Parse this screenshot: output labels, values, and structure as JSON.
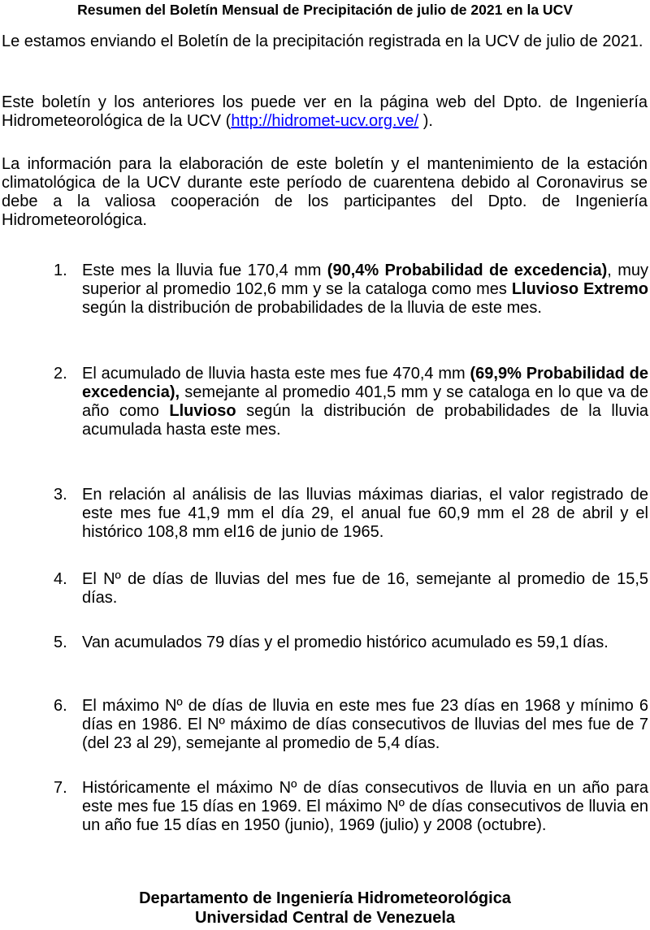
{
  "title": "Resumen del Boletín Mensual de Precipitación de julio de 2021 en la UCV",
  "paragraphs": {
    "p1": "Le estamos enviando el Boletín de la precipitación registrada en la UCV de julio de 2021.",
    "p2_before": "Este boletín y los anteriores los puede ver en la página web del Dpto. de Ingeniería Hidrometeorológica de la UCV (",
    "p2_link": "http://hidromet-ucv.org.ve/",
    "p2_after": " ).",
    "p3": "La información para la elaboración de este boletín y el mantenimiento de la estación climatológica de la UCV durante este período de cuarentena debido al Coronavirus se debe a la valiosa cooperación de los participantes del Dpto. de Ingeniería Hidrometeorológica."
  },
  "items": [
    {
      "num": "1.",
      "segments": [
        {
          "text": "Este mes la lluvia fue 170,4 mm ",
          "bold": false
        },
        {
          "text": "(90,4% Probabilidad de excedencia)",
          "bold": true
        },
        {
          "text": ", muy superior al promedio 102,6 mm y se la cataloga como mes ",
          "bold": false
        },
        {
          "text": "Lluvioso Extremo",
          "bold": true
        },
        {
          "text": " según la distribución de probabilidades de la lluvia de este mes.",
          "bold": false
        }
      ]
    },
    {
      "num": "2.",
      "segments": [
        {
          "text": "El acumulado de lluvia hasta este mes fue 470,4 mm ",
          "bold": false
        },
        {
          "text": "(69,9% Probabilidad de excedencia),",
          "bold": true
        },
        {
          "text": " semejante al promedio 401,5 mm y se cataloga en lo que va de año como ",
          "bold": false
        },
        {
          "text": "Lluvioso",
          "bold": true
        },
        {
          "text": " según la distribución de probabilidades de la lluvia acumulada hasta este mes.",
          "bold": false
        }
      ]
    },
    {
      "num": "3.",
      "segments": [
        {
          "text": "En relación al análisis de las lluvias máximas diarias, el valor registrado de este mes fue 41,9 mm el día 29, el anual fue 60,9 mm el 28 de abril y el histórico 108,8 mm el16 de junio de 1965.",
          "bold": false
        }
      ]
    },
    {
      "num": "4.",
      "segments": [
        {
          "text": "El Nº de días de lluvias del mes fue de 16, semejante al promedio de 15,5 días.",
          "bold": false
        }
      ]
    },
    {
      "num": "5.",
      "segments": [
        {
          "text": "Van acumulados 79 días y el promedio histórico acumulado es 59,1 días.",
          "bold": false
        }
      ]
    },
    {
      "num": "6.",
      "segments": [
        {
          "text": "El máximo Nº de días de lluvia en este mes fue 23 días en 1968 y mínimo 6 días en 1986. El Nº máximo de días consecutivos de lluvias del mes fue de 7 (del 23 al 29), semejante al promedio de 5,4 días.",
          "bold": false
        }
      ]
    },
    {
      "num": "7.",
      "segments": [
        {
          "text": "Históricamente el máximo Nº de días consecutivos de lluvia en un año para este mes fue 15 días en 1969. El máximo Nº de días consecutivos de lluvia en un año fue 15 días en 1950 (junio), 1969 (julio) y 2008 (octubre).",
          "bold": false
        }
      ]
    }
  ],
  "footer": {
    "line1": "Departamento de Ingeniería Hidrometeorológica",
    "line2": "Universidad Central de Venezuela"
  }
}
